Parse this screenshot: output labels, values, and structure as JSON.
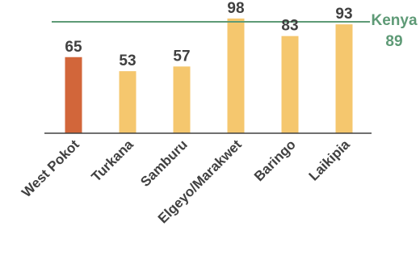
{
  "chart_data": {
    "type": "bar",
    "categories": [
      "West Pokot",
      "Turkana",
      "Samburu",
      "Elgeyo/Marakwet",
      "Baringo",
      "Laikipia"
    ],
    "values": [
      65,
      53,
      57,
      98,
      83,
      93
    ],
    "data_labels": [
      "65",
      "53",
      "57",
      "98",
      "83",
      "93"
    ],
    "title": "",
    "xlabel": "",
    "ylabel": "",
    "ylim": [
      0,
      100
    ],
    "grid": false,
    "legend": "none",
    "reference_line": {
      "label": "Kenya",
      "value": 89,
      "value_label": "89"
    },
    "colors": {
      "highlight_bar": "#D2663A",
      "bar": "#F5C76E",
      "reference_line": "#5E9A76",
      "axis": "#404040",
      "text": "#404040"
    },
    "highlight_index": 0
  }
}
